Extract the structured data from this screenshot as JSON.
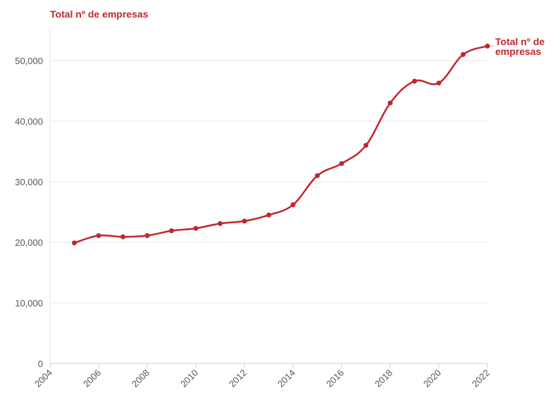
{
  "chart_data": {
    "type": "line",
    "title": "Total nº de empresas",
    "xlabel": "",
    "ylabel": "",
    "xlim": [
      2004,
      2022
    ],
    "ylim": [
      0,
      55000
    ],
    "x_ticks": [
      2004,
      2006,
      2008,
      2010,
      2012,
      2014,
      2016,
      2018,
      2020,
      2022
    ],
    "x_tick_labels": [
      "2004",
      "2006",
      "2008",
      "2010",
      "2012",
      "2014",
      "2016",
      "2018",
      "2020",
      "2022"
    ],
    "y_ticks": [
      0,
      10000,
      20000,
      30000,
      40000,
      50000
    ],
    "y_tick_labels": [
      "0",
      "10,000",
      "20,000",
      "30,000",
      "40,000",
      "50,000"
    ],
    "grid": "horizontal",
    "series": [
      {
        "name": "Total nº de empresas",
        "color": "#c0272d",
        "x": [
          2005,
          2006,
          2007,
          2008,
          2009,
          2010,
          2011,
          2012,
          2013,
          2014,
          2015,
          2016,
          2017,
          2018,
          2019,
          2020,
          2021,
          2022
        ],
        "values": [
          19900,
          21100,
          20900,
          21100,
          21900,
          22300,
          23100,
          23500,
          24500,
          26200,
          31000,
          33000,
          36000,
          43000,
          46600,
          46300,
          51000,
          52400
        ]
      }
    ]
  }
}
